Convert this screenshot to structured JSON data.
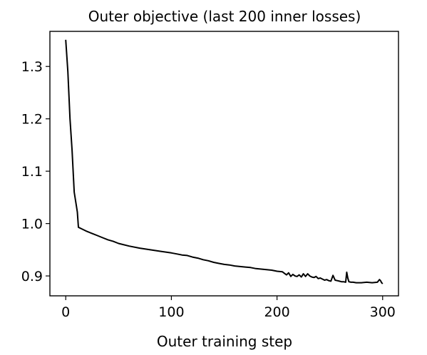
{
  "chart_data": {
    "type": "line",
    "title": "Outer objective (last 200 inner losses)",
    "xlabel": "Outer training step",
    "ylabel": "",
    "xlim": [
      -15,
      315
    ],
    "ylim": [
      0.862,
      1.367
    ],
    "xticks": [
      0,
      100,
      200,
      300
    ],
    "xtick_labels": [
      "0",
      "100",
      "200",
      "300"
    ],
    "yticks": [
      0.9,
      1.0,
      1.1,
      1.2,
      1.3
    ],
    "ytick_labels": [
      "0.9",
      "1.0",
      "1.1",
      "1.2",
      "1.3"
    ],
    "grid": false,
    "legend": "none",
    "series": [
      {
        "color": "#000000",
        "x": [
          0,
          2,
          4,
          6,
          8,
          10,
          11,
          12,
          15,
          20,
          25,
          30,
          35,
          40,
          45,
          50,
          60,
          70,
          80,
          90,
          100,
          105,
          110,
          115,
          120,
          125,
          130,
          135,
          140,
          145,
          150,
          155,
          160,
          165,
          170,
          175,
          180,
          185,
          190,
          195,
          200,
          205,
          207,
          209,
          211,
          213,
          215,
          217,
          219,
          221,
          223,
          225,
          227,
          229,
          231,
          233,
          235,
          237,
          239,
          241,
          243,
          245,
          247,
          249,
          251,
          253,
          255,
          257,
          259,
          261,
          263,
          265,
          266,
          267,
          268,
          270,
          272,
          275,
          280,
          285,
          290,
          295,
          297,
          298,
          299,
          300
        ],
        "values": [
          1.351,
          1.29,
          1.2,
          1.14,
          1.06,
          1.035,
          1.022,
          0.993,
          0.99,
          0.985,
          0.981,
          0.977,
          0.973,
          0.969,
          0.966,
          0.962,
          0.957,
          0.953,
          0.95,
          0.947,
          0.944,
          0.942,
          0.94,
          0.939,
          0.936,
          0.934,
          0.931,
          0.929,
          0.926,
          0.924,
          0.922,
          0.921,
          0.919,
          0.918,
          0.917,
          0.916,
          0.914,
          0.913,
          0.912,
          0.911,
          0.909,
          0.908,
          0.905,
          0.902,
          0.906,
          0.899,
          0.903,
          0.9,
          0.899,
          0.902,
          0.898,
          0.904,
          0.899,
          0.904,
          0.9,
          0.898,
          0.897,
          0.899,
          0.895,
          0.896,
          0.894,
          0.892,
          0.893,
          0.891,
          0.89,
          0.901,
          0.892,
          0.891,
          0.89,
          0.889,
          0.889,
          0.888,
          0.907,
          0.896,
          0.889,
          0.888,
          0.888,
          0.887,
          0.887,
          0.888,
          0.887,
          0.888,
          0.893,
          0.891,
          0.887,
          0.885
        ]
      }
    ]
  }
}
